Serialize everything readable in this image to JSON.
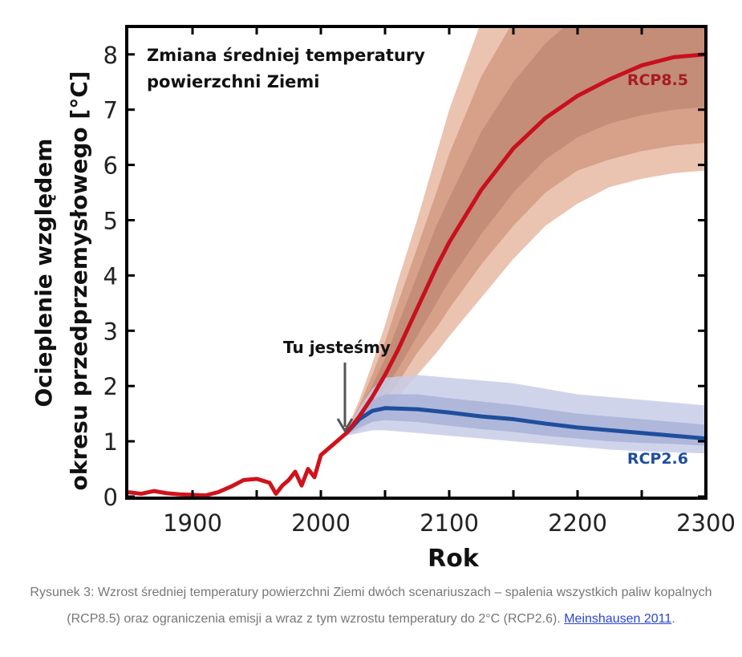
{
  "chart_data": {
    "type": "line",
    "title": "Zmiana średniej temperatury powierzchni Ziemi",
    "title_lines": [
      "Zmiana średniej temperatury",
      "powierzchni Ziemi"
    ],
    "xlabel": "Rok",
    "ylabel_lines": [
      "Ocieplenie względem",
      "okresu przedprzemysłowego [°C]"
    ],
    "xlim": [
      1850,
      2300
    ],
    "ylim": [
      0,
      8.5
    ],
    "xticks": [
      1900,
      2000,
      2100,
      2200,
      2300
    ],
    "yticks": [
      0,
      1,
      2,
      3,
      4,
      5,
      6,
      7,
      8
    ],
    "grid": false,
    "annotation": {
      "text": "Tu jesteśmy",
      "x": 2020,
      "y": 1.1
    },
    "historical": {
      "color": "#d0121b",
      "x": [
        1850,
        1860,
        1870,
        1880,
        1890,
        1900,
        1910,
        1920,
        1930,
        1940,
        1950,
        1960,
        1965,
        1970,
        1975,
        1980,
        1985,
        1990,
        1995,
        2000,
        2005,
        2010,
        2015,
        2020
      ],
      "y": [
        0.08,
        0.05,
        0.1,
        0.06,
        0.04,
        0.03,
        0.02,
        0.08,
        0.18,
        0.3,
        0.32,
        0.25,
        0.05,
        0.2,
        0.3,
        0.45,
        0.2,
        0.5,
        0.35,
        0.75,
        0.85,
        0.95,
        1.05,
        1.15
      ]
    },
    "series": [
      {
        "name": "RCP8.5",
        "color": "#c8101e",
        "band_colors": [
          "#f4dccf",
          "#e7b9a3",
          "#d39a82",
          "#c08a76"
        ],
        "x": [
          2020,
          2030,
          2040,
          2050,
          2060,
          2075,
          2090,
          2100,
          2125,
          2150,
          2175,
          2200,
          2225,
          2250,
          2275,
          2300
        ],
        "y": [
          1.15,
          1.45,
          1.8,
          2.2,
          2.65,
          3.4,
          4.15,
          4.6,
          5.55,
          6.3,
          6.85,
          7.25,
          7.55,
          7.8,
          7.95,
          8.0
        ],
        "bands": [
          {
            "lower": [
              1.1,
              1.2,
              1.35,
              1.55,
              1.8,
              2.2,
              2.6,
              2.9,
              3.6,
              4.3,
              4.9,
              5.3,
              5.6,
              5.75,
              5.85,
              5.9
            ],
            "upper": [
              1.2,
              1.75,
              2.4,
              3.1,
              3.9,
              5.0,
              6.2,
              7.0,
              8.6,
              9.5,
              9.5,
              9.5,
              9.5,
              9.5,
              9.5,
              9.5
            ]
          },
          {
            "lower": [
              1.1,
              1.25,
              1.45,
              1.75,
              2.05,
              2.6,
              3.05,
              3.4,
              4.2,
              4.9,
              5.5,
              5.9,
              6.1,
              6.25,
              6.35,
              6.4
            ],
            "upper": [
              1.2,
              1.65,
              2.2,
              2.8,
              3.5,
              4.5,
              5.5,
              6.2,
              7.6,
              8.6,
              9.5,
              9.5,
              9.5,
              9.5,
              9.5,
              9.5
            ]
          },
          {
            "lower": [
              1.12,
              1.32,
              1.6,
              1.95,
              2.3,
              2.9,
              3.5,
              3.9,
              4.75,
              5.5,
              6.1,
              6.5,
              6.75,
              6.9,
              7.0,
              7.05
            ],
            "upper": [
              1.18,
              1.57,
              2.0,
              2.5,
              3.1,
              4.0,
              4.9,
              5.4,
              6.6,
              7.5,
              8.2,
              8.7,
              9.0,
              9.3,
              9.5,
              9.5
            ]
          }
        ]
      },
      {
        "name": "RCP2.6",
        "color": "#1f4e9c",
        "band_colors": [
          "#e3e6f4",
          "#c8cde8",
          "#a9b1d8",
          "#8e97c6"
        ],
        "x": [
          2020,
          2030,
          2040,
          2050,
          2075,
          2100,
          2125,
          2150,
          2175,
          2200,
          2225,
          2250,
          2275,
          2300
        ],
        "y": [
          1.15,
          1.4,
          1.55,
          1.6,
          1.58,
          1.52,
          1.45,
          1.4,
          1.32,
          1.25,
          1.2,
          1.15,
          1.1,
          1.05
        ],
        "bands": [
          {
            "lower": [
              1.1,
              1.15,
              1.2,
              1.2,
              1.15,
              1.1,
              1.05,
              1.0,
              0.95,
              0.9,
              0.85,
              0.82,
              0.8,
              0.78
            ],
            "upper": [
              1.2,
              1.6,
              1.95,
              2.15,
              2.2,
              2.15,
              2.1,
              2.05,
              1.95,
              1.85,
              1.8,
              1.75,
              1.7,
              1.65
            ]
          },
          {
            "lower": [
              1.12,
              1.25,
              1.35,
              1.38,
              1.35,
              1.28,
              1.22,
              1.17,
              1.1,
              1.05,
              1.0,
              0.97,
              0.95,
              0.92
            ],
            "upper": [
              1.18,
              1.52,
              1.75,
              1.85,
              1.85,
              1.78,
              1.72,
              1.66,
              1.58,
              1.5,
              1.45,
              1.4,
              1.35,
              1.3
            ]
          }
        ]
      }
    ]
  },
  "caption": {
    "text": "Rysunek 3: Wzrost średniej temperatury powierzchni Ziemi dwóch scenariuszach – spalenia wszystkich paliw kopalnych (RCP8.5) oraz ograniczenia emisji a wraz z tym wzrostu temperatury do 2°C (RCP2.6). ",
    "link_text": "Meinshausen 2011",
    "suffix": "."
  }
}
